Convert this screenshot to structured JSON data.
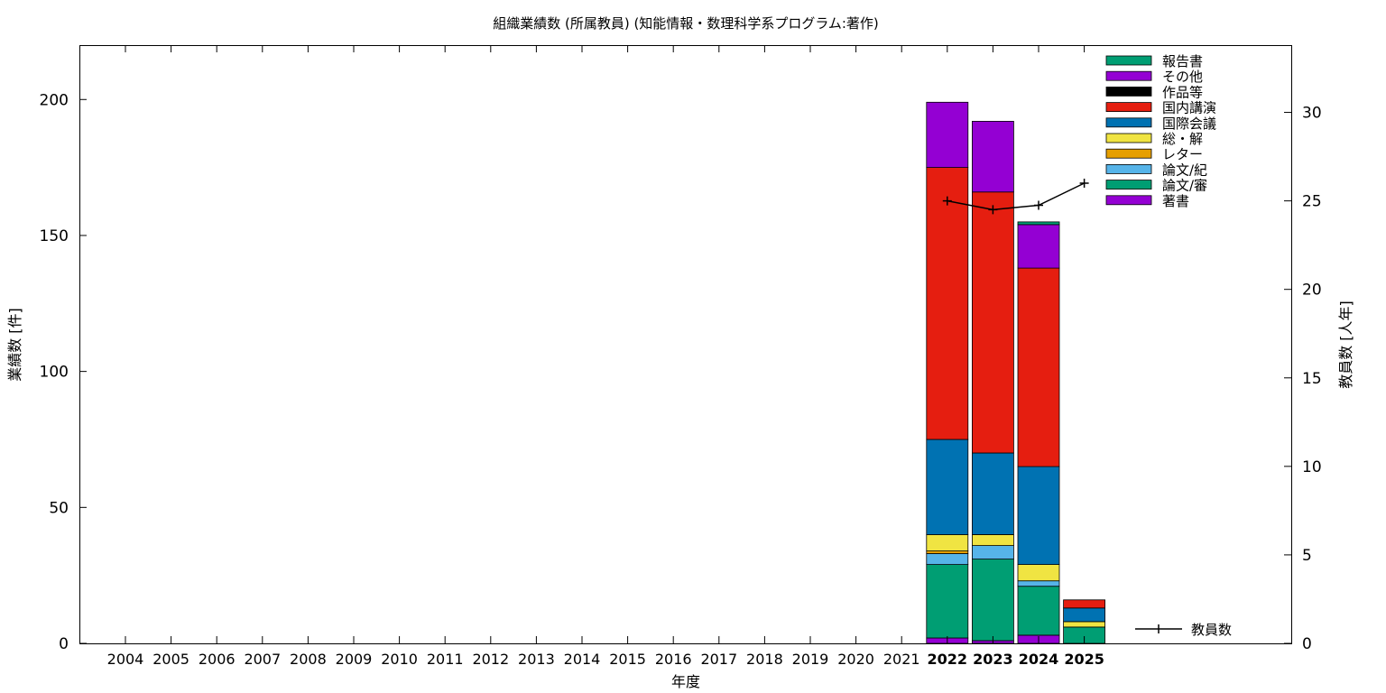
{
  "chart_data": {
    "type": "bar",
    "title": "組織業績数 (所属教員) (知能情報・数理科学系プログラム:著作)",
    "xlabel": "年度",
    "ylabel": "業績数 [件]",
    "y2label": "教員数 [人年]",
    "categories": [
      "2004",
      "2005",
      "2006",
      "2007",
      "2008",
      "2009",
      "2010",
      "2011",
      "2012",
      "2013",
      "2014",
      "2015",
      "2016",
      "2017",
      "2018",
      "2019",
      "2020",
      "2021",
      "2022",
      "2023",
      "2024",
      "2025"
    ],
    "bold_categories": [
      "2022",
      "2023",
      "2024",
      "2025"
    ],
    "ylim": [
      0,
      220
    ],
    "yticks": [
      0,
      50,
      100,
      150,
      200
    ],
    "y2lim": [
      0,
      33.8
    ],
    "y2ticks": [
      0,
      5,
      10,
      15,
      20,
      25,
      30
    ],
    "grid": false,
    "legend_position": "top-right",
    "series": [
      {
        "name": "著書",
        "color": "#9400d3",
        "values": [
          0,
          0,
          0,
          0,
          0,
          0,
          0,
          0,
          0,
          0,
          0,
          0,
          0,
          0,
          0,
          0,
          0,
          0,
          2,
          1,
          3,
          0
        ]
      },
      {
        "name": "論文/審",
        "color": "#009e73",
        "values": [
          0,
          0,
          0,
          0,
          0,
          0,
          0,
          0,
          0,
          0,
          0,
          0,
          0,
          0,
          0,
          0,
          0,
          0,
          27,
          30,
          18,
          6
        ]
      },
      {
        "name": "論文/紀",
        "color": "#56b4e9",
        "values": [
          0,
          0,
          0,
          0,
          0,
          0,
          0,
          0,
          0,
          0,
          0,
          0,
          0,
          0,
          0,
          0,
          0,
          0,
          4,
          5,
          2,
          0
        ]
      },
      {
        "name": "レター",
        "color": "#e69f00",
        "values": [
          0,
          0,
          0,
          0,
          0,
          0,
          0,
          0,
          0,
          0,
          0,
          0,
          0,
          0,
          0,
          0,
          0,
          0,
          1,
          0,
          0,
          0
        ]
      },
      {
        "name": "総・解",
        "color": "#f0e442",
        "values": [
          0,
          0,
          0,
          0,
          0,
          0,
          0,
          0,
          0,
          0,
          0,
          0,
          0,
          0,
          0,
          0,
          0,
          0,
          6,
          4,
          6,
          2
        ]
      },
      {
        "name": "国際会議",
        "color": "#0072b2",
        "values": [
          0,
          0,
          0,
          0,
          0,
          0,
          0,
          0,
          0,
          0,
          0,
          0,
          0,
          0,
          0,
          0,
          0,
          0,
          35,
          30,
          36,
          5
        ]
      },
      {
        "name": "国内講演",
        "color": "#e51e10",
        "values": [
          0,
          0,
          0,
          0,
          0,
          0,
          0,
          0,
          0,
          0,
          0,
          0,
          0,
          0,
          0,
          0,
          0,
          0,
          100,
          96,
          73,
          3
        ]
      },
      {
        "name": "作品等",
        "color": "#000000",
        "values": [
          0,
          0,
          0,
          0,
          0,
          0,
          0,
          0,
          0,
          0,
          0,
          0,
          0,
          0,
          0,
          0,
          0,
          0,
          0,
          0,
          0,
          0
        ]
      },
      {
        "name": "その他",
        "color": "#9400d3",
        "values": [
          0,
          0,
          0,
          0,
          0,
          0,
          0,
          0,
          0,
          0,
          0,
          0,
          0,
          0,
          0,
          0,
          0,
          0,
          24,
          26,
          16,
          0
        ]
      },
      {
        "name": "報告書",
        "color": "#009e73",
        "values": [
          0,
          0,
          0,
          0,
          0,
          0,
          0,
          0,
          0,
          0,
          0,
          0,
          0,
          0,
          0,
          0,
          0,
          0,
          0,
          0,
          1,
          0
        ]
      }
    ],
    "line_series": {
      "name": "教員数",
      "color": "#000000",
      "axis": "y2",
      "x": [
        "2022",
        "2023",
        "2024",
        "2025"
      ],
      "values": [
        25.0,
        24.5,
        24.75,
        26.0
      ]
    }
  }
}
